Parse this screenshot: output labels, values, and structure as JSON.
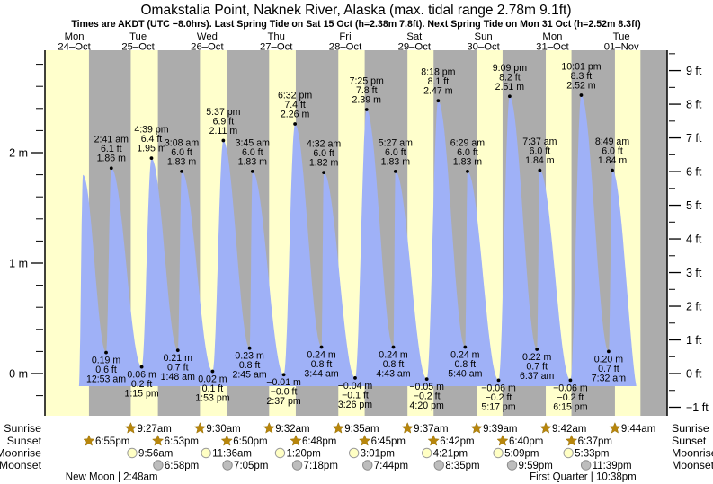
{
  "chart_data": {
    "type": "area",
    "title": "Omakstalia Point, Naknek River, Alaska (max. tidal range 2.78m 9.1ft)",
    "subtitle": "Times are AKDT (UTC −8.0hrs). Last Spring Tide on Sat 15 Oct (h=2.38m 7.8ft). Next Spring Tide on Mon 31 Oct (h=2.52m 8.3ft)",
    "station": "Omakstalia Point, Naknek River, Alaska",
    "max_tidal_range": "2.78m 9.1ft",
    "days": [
      {
        "name": "Mon",
        "date": "24–Oct"
      },
      {
        "name": "Tue",
        "date": "25–Oct"
      },
      {
        "name": "Wed",
        "date": "26–Oct"
      },
      {
        "name": "Thu",
        "date": "27–Oct"
      },
      {
        "name": "Fri",
        "date": "28–Oct"
      },
      {
        "name": "Sat",
        "date": "29–Oct"
      },
      {
        "name": "Sun",
        "date": "30–Oct"
      },
      {
        "name": "Mon",
        "date": "31–Oct"
      },
      {
        "name": "Tue",
        "date": "01–Nov"
      }
    ],
    "axes": {
      "left_unit": "m",
      "left_major_ticks": [
        {
          "label": "0 m",
          "value": 0
        },
        {
          "label": "1 m",
          "value": 1
        },
        {
          "label": "2 m",
          "value": 2
        }
      ],
      "left_minor_from": -0.2,
      "left_minor_to": 2.8,
      "left_minor_step": 0.2,
      "right_unit": "ft",
      "right_major_ticks": [
        {
          "label": "−1 ft",
          "value": -1
        },
        {
          "label": "0 ft",
          "value": 0
        },
        {
          "label": "1 ft",
          "value": 1
        },
        {
          "label": "2 ft",
          "value": 2
        },
        {
          "label": "3 ft",
          "value": 3
        },
        {
          "label": "4 ft",
          "value": 4
        },
        {
          "label": "5 ft",
          "value": 5
        },
        {
          "label": "6 ft",
          "value": 6
        },
        {
          "label": "7 ft",
          "value": 7
        },
        {
          "label": "8 ft",
          "value": 8
        },
        {
          "label": "9 ft",
          "value": 9
        }
      ],
      "right_minor_from": -0.5,
      "right_minor_to": 9.5,
      "right_minor_step": 1
    },
    "tide_extremes": [
      {
        "type": "edge",
        "t": 15.4,
        "h": -0.12
      },
      {
        "type": "edge",
        "t": 16.85,
        "h": 1.8
      },
      {
        "type": "low",
        "time": "12:53 am",
        "ft": "0.6 ft",
        "m": "0.19 m",
        "t": 24.883,
        "h": 0.19
      },
      {
        "type": "high",
        "time": "2:41 am",
        "ft": "6.1 ft",
        "m": "1.86 m",
        "t": 26.683,
        "h": 1.86
      },
      {
        "type": "low",
        "time": "1:15 pm",
        "ft": "0.2 ft",
        "m": "0.06 m",
        "t": 37.25,
        "h": 0.06
      },
      {
        "type": "high",
        "time": "4:39 pm",
        "ft": "6.4 ft",
        "m": "1.95 m",
        "t": 40.65,
        "h": 1.95
      },
      {
        "type": "low",
        "time": "1:48 am",
        "ft": "0.7 ft",
        "m": "0.21 m",
        "t": 49.8,
        "h": 0.21
      },
      {
        "type": "high",
        "time": "3:08 am",
        "ft": "6.0 ft",
        "m": "1.83 m",
        "t": 51.133,
        "h": 1.83
      },
      {
        "type": "low",
        "time": "1:53 pm",
        "ft": "0.1 ft",
        "m": "0.02 m",
        "t": 61.883,
        "h": 0.02
      },
      {
        "type": "high",
        "time": "5:37 pm",
        "ft": "6.9 ft",
        "m": "2.11 m",
        "t": 65.617,
        "h": 2.11
      },
      {
        "type": "low",
        "time": "2:45 am",
        "ft": "0.8 ft",
        "m": "0.23 m",
        "t": 74.75,
        "h": 0.23
      },
      {
        "type": "high",
        "time": "3:45 am",
        "ft": "6.0 ft",
        "m": "1.83 m",
        "t": 75.75,
        "h": 1.83
      },
      {
        "type": "low",
        "time": "2:37 pm",
        "ft": "−0.0 ft",
        "m": "−0.01 m",
        "t": 86.617,
        "h": -0.01
      },
      {
        "type": "high",
        "time": "6:32 pm",
        "ft": "7.4 ft",
        "m": "2.26 m",
        "t": 90.533,
        "h": 2.26
      },
      {
        "type": "low",
        "time": "3:44 am",
        "ft": "0.8 ft",
        "m": "0.24 m",
        "t": 99.733,
        "h": 0.24
      },
      {
        "type": "high",
        "time": "4:32 am",
        "ft": "6.0 ft",
        "m": "1.82 m",
        "t": 100.533,
        "h": 1.82
      },
      {
        "type": "low",
        "time": "3:26 pm",
        "ft": "−0.1 ft",
        "m": "−0.04 m",
        "t": 111.433,
        "h": -0.04
      },
      {
        "type": "high",
        "time": "7:25 pm",
        "ft": "7.8 ft",
        "m": "2.39 m",
        "t": 115.417,
        "h": 2.39
      },
      {
        "type": "low",
        "time": "4:43 am",
        "ft": "0.8 ft",
        "m": "0.24 m",
        "t": 124.717,
        "h": 0.24
      },
      {
        "type": "high",
        "time": "5:27 am",
        "ft": "6.0 ft",
        "m": "1.83 m",
        "t": 125.45,
        "h": 1.83
      },
      {
        "type": "low",
        "time": "4:20 pm",
        "ft": "−0.2 ft",
        "m": "−0.05 m",
        "t": 136.333,
        "h": -0.05
      },
      {
        "type": "high",
        "time": "8:18 pm",
        "ft": "8.1 ft",
        "m": "2.47 m",
        "t": 140.3,
        "h": 2.47
      },
      {
        "type": "low",
        "time": "5:40 am",
        "ft": "0.8 ft",
        "m": "0.24 m",
        "t": 149.667,
        "h": 0.24
      },
      {
        "type": "high",
        "time": "6:29 am",
        "ft": "6.0 ft",
        "m": "1.83 m",
        "t": 150.483,
        "h": 1.83
      },
      {
        "type": "low",
        "time": "5:17 pm",
        "ft": "−0.2 ft",
        "m": "−0.06 m",
        "t": 161.283,
        "h": -0.06
      },
      {
        "type": "high",
        "time": "9:09 pm",
        "ft": "8.2 ft",
        "m": "2.51 m",
        "t": 165.15,
        "h": 2.51
      },
      {
        "type": "low",
        "time": "6:37 am",
        "ft": "0.7 ft",
        "m": "0.22 m",
        "t": 174.617,
        "h": 0.22
      },
      {
        "type": "high",
        "time": "7:37 am",
        "ft": "6.0 ft",
        "m": "1.84 m",
        "t": 175.617,
        "h": 1.84
      },
      {
        "type": "low",
        "time": "6:15 pm",
        "ft": "−0.2 ft",
        "m": "−0.06 m",
        "t": 186.25,
        "h": -0.06
      },
      {
        "type": "high",
        "time": "10:01 pm",
        "ft": "8.3 ft",
        "m": "2.52 m",
        "t": 190.017,
        "h": 2.52
      },
      {
        "type": "low",
        "time": "7:32 am",
        "ft": "0.7 ft",
        "m": "0.20 m",
        "t": 199.533,
        "h": 0.2
      },
      {
        "type": "high",
        "time": "8:49 am",
        "ft": "6.0 ft",
        "m": "1.84 m",
        "t": 200.817,
        "h": 1.84
      },
      {
        "type": "edge",
        "t": 211.0,
        "h": -0.3
      }
    ],
    "sun_moon": {
      "row_labels": [
        "Sunrise",
        "Sunset",
        "Moonrise",
        "Moonset"
      ],
      "sunrise": [
        {
          "time": "9:27am",
          "t": 33.45
        },
        {
          "time": "9:30am",
          "t": 57.5
        },
        {
          "time": "9:32am",
          "t": 81.53
        },
        {
          "time": "9:35am",
          "t": 105.58
        },
        {
          "time": "9:37am",
          "t": 129.62
        },
        {
          "time": "9:39am",
          "t": 153.65
        },
        {
          "time": "9:42am",
          "t": 177.7
        },
        {
          "time": "9:44am",
          "t": 201.73
        }
      ],
      "sunset": [
        {
          "time": "6:55pm",
          "t": 18.92
        },
        {
          "time": "6:53pm",
          "t": 42.88
        },
        {
          "time": "6:50pm",
          "t": 66.83
        },
        {
          "time": "6:48pm",
          "t": 90.8
        },
        {
          "time": "6:45pm",
          "t": 114.75
        },
        {
          "time": "6:42pm",
          "t": 138.7
        },
        {
          "time": "6:40pm",
          "t": 162.67
        },
        {
          "time": "6:37pm",
          "t": 186.62
        }
      ],
      "moonrise": [
        {
          "time": "9:56am",
          "t": 33.93
        },
        {
          "time": "11:36am",
          "t": 59.6
        },
        {
          "time": "1:20pm",
          "t": 85.33
        },
        {
          "time": "3:01pm",
          "t": 111.02
        },
        {
          "time": "4:21pm",
          "t": 136.35
        },
        {
          "time": "5:09pm",
          "t": 161.15
        },
        {
          "time": "5:33pm",
          "t": 185.55
        }
      ],
      "moonset": [
        {
          "time": "6:58pm",
          "t": 42.97
        },
        {
          "time": "7:05pm",
          "t": 67.08
        },
        {
          "time": "7:18pm",
          "t": 91.3
        },
        {
          "time": "7:44pm",
          "t": 115.73
        },
        {
          "time": "8:35pm",
          "t": 140.58
        },
        {
          "time": "9:59pm",
          "t": 165.98
        },
        {
          "time": "11:39pm",
          "t": 191.65
        }
      ],
      "phases": [
        {
          "text": "New Moon | 2:48am",
          "t": 26.8
        },
        {
          "text": "First Quarter | 10:38pm",
          "t": 190.63
        }
      ],
      "last_night_start_t": 210.6
    },
    "colors": {
      "day_band": "#ffffcc",
      "night_band": "#acacac",
      "water": "#9fb1f7",
      "date_red": "#e31c1c",
      "sun_star": "#b8860b",
      "sun_star_edge": "#96700a",
      "moonrise_fill": "#ffffc4",
      "moonrise_edge": "#9a9a9a",
      "moonset_fill": "#bdbdbd",
      "moonset_edge": "#8c8c8c"
    }
  }
}
